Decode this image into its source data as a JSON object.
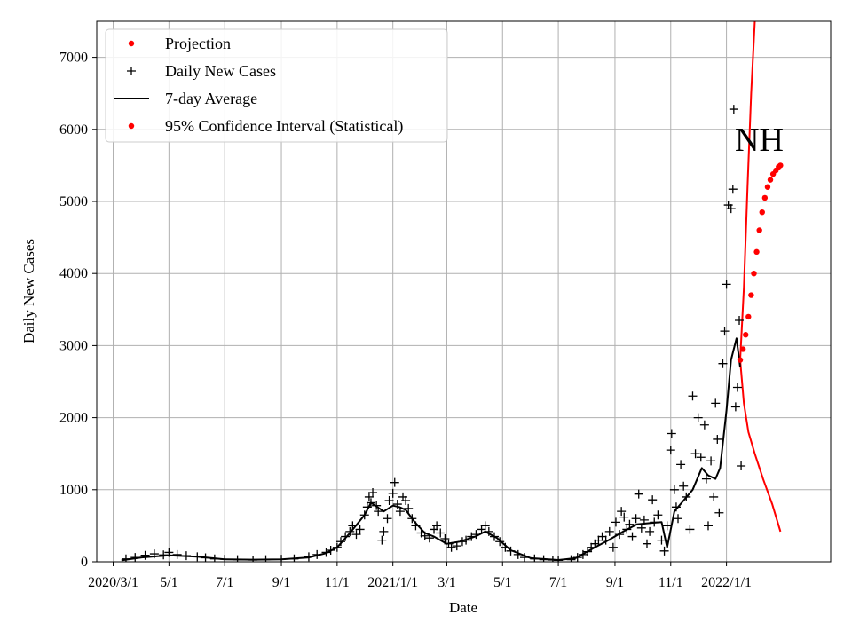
{
  "chart_data": {
    "type": "scatter",
    "title": "",
    "xlabel": "Date",
    "ylabel": "Daily New Cases",
    "annotation": "NH",
    "xlim": [
      "2020-02-12",
      "2022-04-25"
    ],
    "ylim": [
      0,
      7500
    ],
    "grid": true,
    "legend_position": "top-left",
    "x_ticks": [
      {
        "date": "2020-03-01",
        "label": "2020/3/1"
      },
      {
        "date": "2020-05-01",
        "label": "5/1"
      },
      {
        "date": "2020-07-01",
        "label": "7/1"
      },
      {
        "date": "2020-09-01",
        "label": "9/1"
      },
      {
        "date": "2020-11-01",
        "label": "11/1"
      },
      {
        "date": "2021-01-01",
        "label": "2021/1/1"
      },
      {
        "date": "2021-03-01",
        "label": "3/1"
      },
      {
        "date": "2021-05-01",
        "label": "5/1"
      },
      {
        "date": "2021-07-01",
        "label": "7/1"
      },
      {
        "date": "2021-09-01",
        "label": "9/1"
      },
      {
        "date": "2021-11-01",
        "label": "11/1"
      },
      {
        "date": "2022-01-01",
        "label": "2022/1/1"
      }
    ],
    "y_ticks": [
      {
        "value": 0,
        "label": "0"
      },
      {
        "value": 1000,
        "label": "1000"
      },
      {
        "value": 2000,
        "label": "2000"
      },
      {
        "value": 3000,
        "label": "3000"
      },
      {
        "value": 4000,
        "label": "4000"
      },
      {
        "value": 5000,
        "label": "5000"
      },
      {
        "value": 6000,
        "label": "6000"
      },
      {
        "value": 7000,
        "label": "7000"
      }
    ],
    "legend": [
      {
        "label": "Projection",
        "marker": "dot",
        "color": "#ff0000"
      },
      {
        "label": "Daily New Cases",
        "marker": "plus",
        "color": "#000000"
      },
      {
        "label": "7-day Average",
        "marker": "line",
        "color": "#000000"
      },
      {
        "label": "95% Confidence Interval (Statistical)",
        "marker": "dot",
        "color": "#ff0000"
      }
    ],
    "series": [
      {
        "name": "Daily New Cases",
        "kind": "plus",
        "color": "#000000",
        "points": [
          [
            "2020-03-15",
            40
          ],
          [
            "2020-03-25",
            60
          ],
          [
            "2020-04-05",
            90
          ],
          [
            "2020-04-15",
            110
          ],
          [
            "2020-04-25",
            95
          ],
          [
            "2020-05-01",
            130
          ],
          [
            "2020-05-10",
            100
          ],
          [
            "2020-05-20",
            85
          ],
          [
            "2020-06-01",
            70
          ],
          [
            "2020-06-10",
            55
          ],
          [
            "2020-06-20",
            40
          ],
          [
            "2020-07-01",
            35
          ],
          [
            "2020-07-15",
            30
          ],
          [
            "2020-08-01",
            25
          ],
          [
            "2020-08-15",
            30
          ],
          [
            "2020-09-01",
            35
          ],
          [
            "2020-09-15",
            40
          ],
          [
            "2020-10-01",
            70
          ],
          [
            "2020-10-10",
            100
          ],
          [
            "2020-10-20",
            130
          ],
          [
            "2020-10-25",
            160
          ],
          [
            "2020-11-01",
            200
          ],
          [
            "2020-11-05",
            280
          ],
          [
            "2020-11-10",
            350
          ],
          [
            "2020-11-15",
            420
          ],
          [
            "2020-11-18",
            500
          ],
          [
            "2020-11-22",
            380
          ],
          [
            "2020-11-26",
            450
          ],
          [
            "2020-12-01",
            650
          ],
          [
            "2020-12-04",
            760
          ],
          [
            "2020-12-06",
            900
          ],
          [
            "2020-12-08",
            820
          ],
          [
            "2020-12-10",
            960
          ],
          [
            "2020-12-14",
            780
          ],
          [
            "2020-12-16",
            700
          ],
          [
            "2020-12-20",
            300
          ],
          [
            "2020-12-22",
            420
          ],
          [
            "2020-12-26",
            600
          ],
          [
            "2020-12-28",
            850
          ],
          [
            "2021-01-01",
            950
          ],
          [
            "2021-01-03",
            1100
          ],
          [
            "2021-01-06",
            800
          ],
          [
            "2021-01-09",
            700
          ],
          [
            "2021-01-12",
            900
          ],
          [
            "2021-01-15",
            850
          ],
          [
            "2021-01-18",
            740
          ],
          [
            "2021-01-22",
            600
          ],
          [
            "2021-01-26",
            500
          ],
          [
            "2021-02-01",
            400
          ],
          [
            "2021-02-05",
            360
          ],
          [
            "2021-02-10",
            330
          ],
          [
            "2021-02-15",
            450
          ],
          [
            "2021-02-18",
            500
          ],
          [
            "2021-02-22",
            400
          ],
          [
            "2021-02-27",
            320
          ],
          [
            "2021-03-03",
            250
          ],
          [
            "2021-03-06",
            200
          ],
          [
            "2021-03-12",
            220
          ],
          [
            "2021-03-18",
            280
          ],
          [
            "2021-03-22",
            300
          ],
          [
            "2021-03-28",
            350
          ],
          [
            "2021-04-02",
            380
          ],
          [
            "2021-04-08",
            450
          ],
          [
            "2021-04-12",
            500
          ],
          [
            "2021-04-16",
            420
          ],
          [
            "2021-04-22",
            350
          ],
          [
            "2021-04-28",
            280
          ],
          [
            "2021-05-04",
            200
          ],
          [
            "2021-05-10",
            150
          ],
          [
            "2021-05-18",
            100
          ],
          [
            "2021-05-25",
            60
          ],
          [
            "2021-06-05",
            40
          ],
          [
            "2021-06-15",
            30
          ],
          [
            "2021-06-25",
            25
          ],
          [
            "2021-07-01",
            20
          ],
          [
            "2021-07-15",
            30
          ],
          [
            "2021-07-22",
            60
          ],
          [
            "2021-07-28",
            100
          ],
          [
            "2021-08-02",
            140
          ],
          [
            "2021-08-06",
            200
          ],
          [
            "2021-08-10",
            250
          ],
          [
            "2021-08-14",
            300
          ],
          [
            "2021-08-18",
            350
          ],
          [
            "2021-08-22",
            300
          ],
          [
            "2021-08-26",
            420
          ],
          [
            "2021-08-30",
            200
          ],
          [
            "2021-09-02",
            550
          ],
          [
            "2021-09-06",
            380
          ],
          [
            "2021-09-08",
            700
          ],
          [
            "2021-09-11",
            620
          ],
          [
            "2021-09-14",
            450
          ],
          [
            "2021-09-17",
            520
          ],
          [
            "2021-09-20",
            350
          ],
          [
            "2021-09-24",
            600
          ],
          [
            "2021-09-27",
            940
          ],
          [
            "2021-09-30",
            470
          ],
          [
            "2021-10-03",
            580
          ],
          [
            "2021-10-06",
            250
          ],
          [
            "2021-10-09",
            420
          ],
          [
            "2021-10-12",
            860
          ],
          [
            "2021-10-14",
            550
          ],
          [
            "2021-10-18",
            650
          ],
          [
            "2021-10-22",
            300
          ],
          [
            "2021-10-25",
            150
          ],
          [
            "2021-10-28",
            500
          ],
          [
            "2021-11-01",
            1550
          ],
          [
            "2021-11-02",
            1780
          ],
          [
            "2021-11-05",
            1000
          ],
          [
            "2021-11-07",
            760
          ],
          [
            "2021-11-09",
            600
          ],
          [
            "2021-11-12",
            1350
          ],
          [
            "2021-11-15",
            1050
          ],
          [
            "2021-11-18",
            900
          ],
          [
            "2021-11-22",
            450
          ],
          [
            "2021-11-25",
            2300
          ],
          [
            "2021-11-28",
            1500
          ],
          [
            "2021-12-01",
            2000
          ],
          [
            "2021-12-04",
            1450
          ],
          [
            "2021-12-08",
            1900
          ],
          [
            "2021-12-10",
            1150
          ],
          [
            "2021-12-12",
            500
          ],
          [
            "2021-12-15",
            1400
          ],
          [
            "2021-12-18",
            900
          ],
          [
            "2021-12-20",
            2200
          ],
          [
            "2021-12-22",
            1700
          ],
          [
            "2021-12-24",
            680
          ],
          [
            "2021-12-28",
            2750
          ],
          [
            "2021-12-30",
            3200
          ],
          [
            "2022-01-01",
            3850
          ],
          [
            "2022-01-03",
            4950
          ],
          [
            "2022-01-06",
            4900
          ],
          [
            "2022-01-08",
            5170
          ],
          [
            "2022-01-09",
            6280
          ],
          [
            "2022-01-11",
            2150
          ],
          [
            "2022-01-13",
            2420
          ],
          [
            "2022-01-15",
            3350
          ],
          [
            "2022-01-17",
            1330
          ]
        ]
      },
      {
        "name": "7-day Average",
        "kind": "line",
        "color": "#000000",
        "points": [
          [
            "2020-03-10",
            20
          ],
          [
            "2020-04-01",
            60
          ],
          [
            "2020-05-01",
            90
          ],
          [
            "2020-06-01",
            70
          ],
          [
            "2020-07-01",
            35
          ],
          [
            "2020-08-01",
            30
          ],
          [
            "2020-09-01",
            35
          ],
          [
            "2020-10-01",
            60
          ],
          [
            "2020-10-20",
            120
          ],
          [
            "2020-11-01",
            200
          ],
          [
            "2020-11-15",
            400
          ],
          [
            "2020-12-01",
            650
          ],
          [
            "2020-12-08",
            820
          ],
          [
            "2020-12-15",
            760
          ],
          [
            "2020-12-22",
            700
          ],
          [
            "2021-01-01",
            780
          ],
          [
            "2021-01-08",
            760
          ],
          [
            "2021-01-15",
            720
          ],
          [
            "2021-01-25",
            550
          ],
          [
            "2021-02-05",
            400
          ],
          [
            "2021-02-15",
            350
          ],
          [
            "2021-03-01",
            250
          ],
          [
            "2021-03-15",
            280
          ],
          [
            "2021-04-01",
            350
          ],
          [
            "2021-04-12",
            420
          ],
          [
            "2021-04-25",
            330
          ],
          [
            "2021-05-10",
            160
          ],
          [
            "2021-06-01",
            50
          ],
          [
            "2021-07-01",
            25
          ],
          [
            "2021-07-20",
            50
          ],
          [
            "2021-08-10",
            200
          ],
          [
            "2021-08-25",
            300
          ],
          [
            "2021-09-10",
            420
          ],
          [
            "2021-09-25",
            520
          ],
          [
            "2021-10-10",
            540
          ],
          [
            "2021-10-22",
            550
          ],
          [
            "2021-10-28",
            200
          ],
          [
            "2021-11-05",
            700
          ],
          [
            "2021-11-15",
            850
          ],
          [
            "2021-11-25",
            1000
          ],
          [
            "2021-12-05",
            1300
          ],
          [
            "2021-12-12",
            1200
          ],
          [
            "2021-12-20",
            1150
          ],
          [
            "2021-12-25",
            1300
          ],
          [
            "2022-01-01",
            2100
          ],
          [
            "2022-01-06",
            2800
          ],
          [
            "2022-01-12",
            3100
          ],
          [
            "2022-01-16",
            2700
          ]
        ]
      },
      {
        "name": "Projection",
        "kind": "dots",
        "color": "#ff0000",
        "points": [
          [
            "2022-01-16",
            2800
          ],
          [
            "2022-01-19",
            2950
          ],
          [
            "2022-01-22",
            3150
          ],
          [
            "2022-01-25",
            3400
          ],
          [
            "2022-01-28",
            3700
          ],
          [
            "2022-01-31",
            4000
          ],
          [
            "2022-02-03",
            4300
          ],
          [
            "2022-02-06",
            4600
          ],
          [
            "2022-02-09",
            4850
          ],
          [
            "2022-02-12",
            5050
          ],
          [
            "2022-02-15",
            5200
          ],
          [
            "2022-02-18",
            5300
          ],
          [
            "2022-02-21",
            5380
          ],
          [
            "2022-02-24",
            5430
          ],
          [
            "2022-02-27",
            5480
          ],
          [
            "2022-03-01",
            5500
          ]
        ]
      },
      {
        "name": "95% Confidence Interval (Statistical)",
        "kind": "band",
        "color": "#ff0000",
        "upper": [
          [
            "2022-01-16",
            2800
          ],
          [
            "2022-01-20",
            3800
          ],
          [
            "2022-01-24",
            5200
          ],
          [
            "2022-01-28",
            6500
          ],
          [
            "2022-02-01",
            7500
          ]
        ],
        "lower": [
          [
            "2022-01-16",
            2800
          ],
          [
            "2022-01-20",
            2200
          ],
          [
            "2022-01-25",
            1800
          ],
          [
            "2022-02-01",
            1500
          ],
          [
            "2022-02-10",
            1150
          ],
          [
            "2022-02-20",
            800
          ],
          [
            "2022-03-01",
            420
          ]
        ]
      }
    ]
  }
}
